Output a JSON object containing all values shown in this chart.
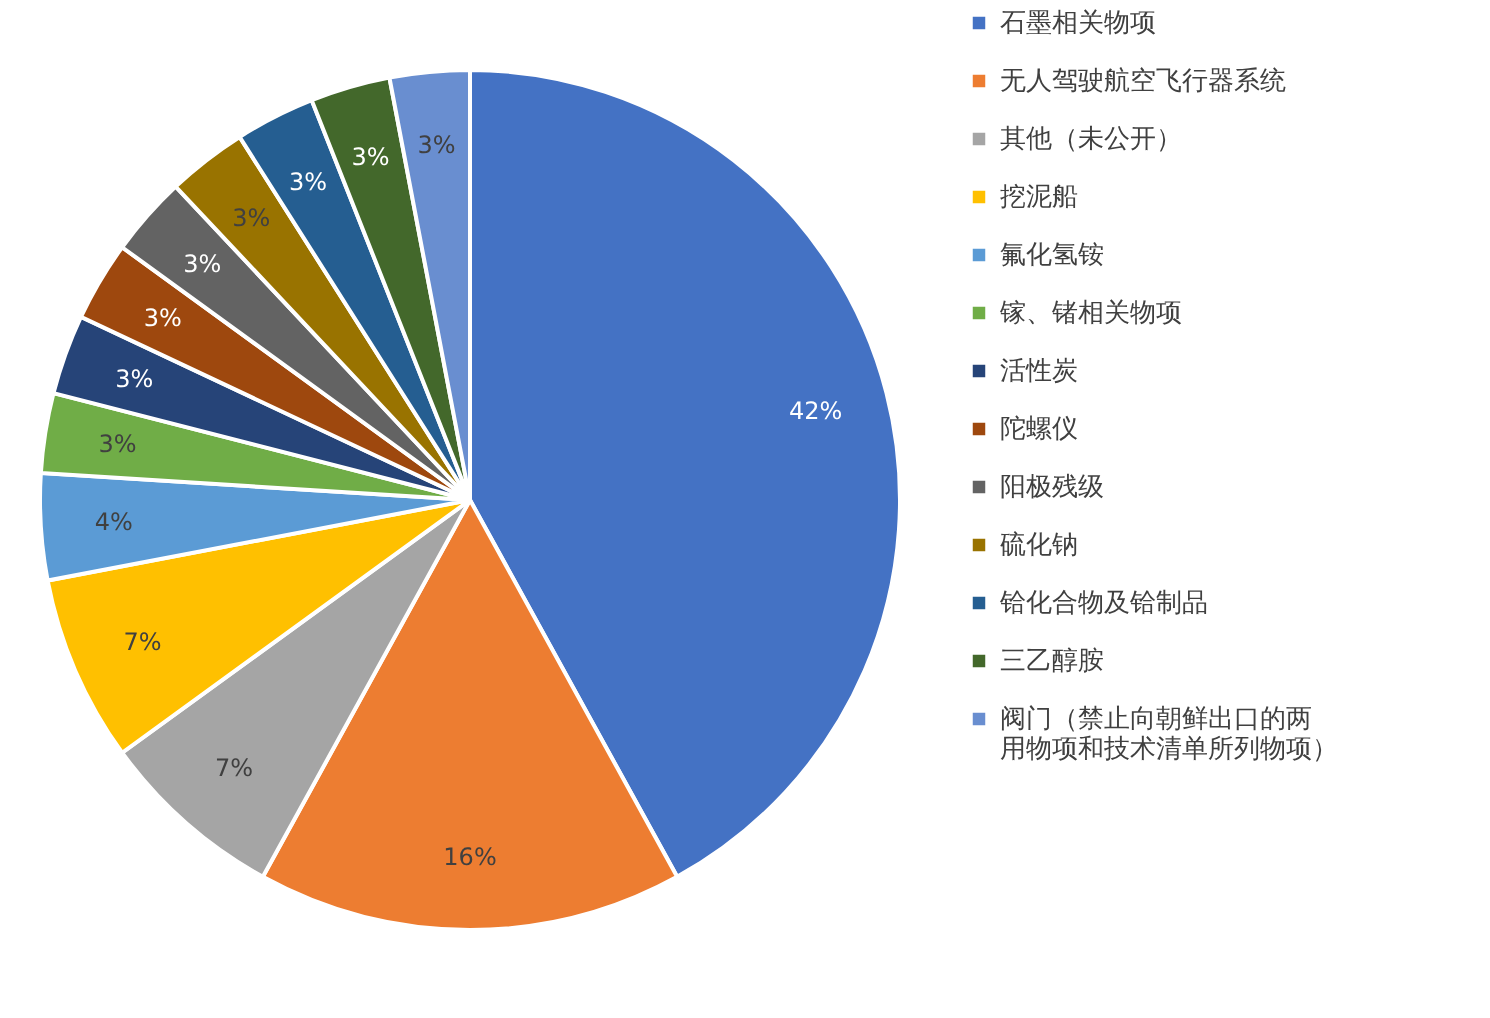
{
  "chart_data": {
    "type": "pie",
    "legend": "right",
    "value_labels": [
      "42%",
      "16%",
      "7%",
      "7%",
      "4%",
      "3%",
      "3%",
      "3%",
      "3%",
      "3%",
      "3%",
      "3%",
      "3%"
    ],
    "categories": [
      "石墨相关物项",
      "无人驾驶航空飞行器系统",
      "其他（未公开）",
      "挖泥船",
      "氟化氢铵",
      "镓、锗相关物项",
      "活性炭",
      "陀螺仪",
      "阳极残级",
      "硫化钠",
      "铪化合物及铪制品",
      "三乙醇胺",
      "阀门（禁止向朝鲜出口的两用物项和技术清单所列物项）"
    ],
    "values": [
      42,
      16,
      7,
      7,
      4,
      3,
      3,
      3,
      3,
      3,
      3,
      3,
      3
    ],
    "colors": [
      "#4472c4",
      "#ed7d31",
      "#a5a5a5",
      "#ffc000",
      "#5b9bd5",
      "#70ad47",
      "#264478",
      "#9e480e",
      "#636363",
      "#997300",
      "#255e91",
      "#43682b",
      "#698ed0"
    ]
  }
}
